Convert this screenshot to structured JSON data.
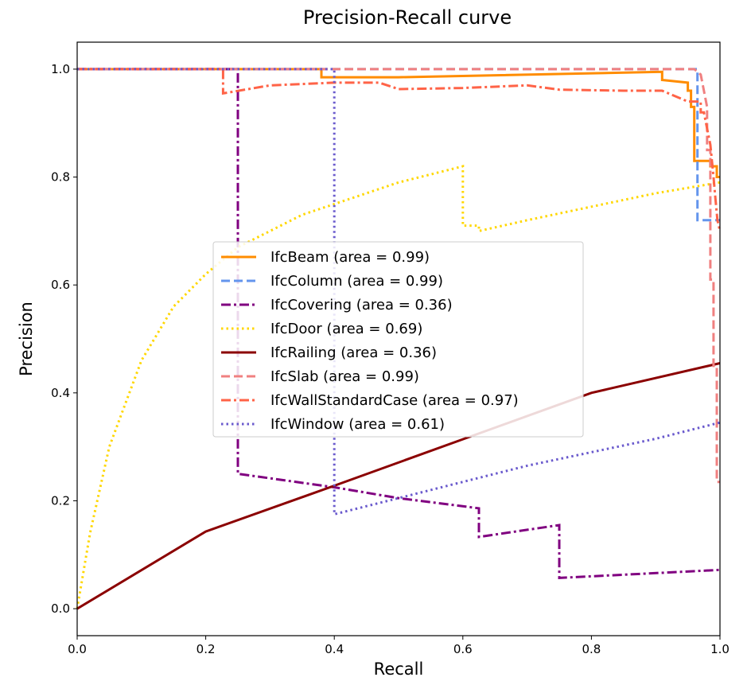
{
  "chart_data": {
    "type": "line",
    "title": "Precision-Recall curve",
    "xlabel": "Recall",
    "ylabel": "Precision",
    "xlim": [
      0.0,
      1.0
    ],
    "ylim": [
      -0.05,
      1.05
    ],
    "xticks": [
      "0.0",
      "0.2",
      "0.4",
      "0.6",
      "0.8",
      "1.0"
    ],
    "yticks": [
      "0.0",
      "0.2",
      "0.4",
      "0.6",
      "0.8",
      "1.0"
    ],
    "grid": false,
    "legend_position": "center",
    "series": [
      {
        "name": "IfcBeam (area = 0.99)",
        "color": "#ff8c00",
        "dash": "solid",
        "points": [
          [
            0,
            1.0
          ],
          [
            0.38,
            1.0
          ],
          [
            0.38,
            0.985
          ],
          [
            0.5,
            0.985
          ],
          [
            0.91,
            0.995
          ],
          [
            0.91,
            0.98
          ],
          [
            0.95,
            0.975
          ],
          [
            0.95,
            0.96
          ],
          [
            0.955,
            0.96
          ],
          [
            0.955,
            0.93
          ],
          [
            0.96,
            0.93
          ],
          [
            0.96,
            0.83
          ],
          [
            0.985,
            0.83
          ],
          [
            0.985,
            0.82
          ],
          [
            0.995,
            0.82
          ],
          [
            0.995,
            0.8
          ],
          [
            1.0,
            0.8
          ]
        ]
      },
      {
        "name": "IfcColumn (area = 0.99)",
        "color": "#6495ed",
        "dash": "dashed",
        "points": [
          [
            0,
            1.0
          ],
          [
            0.965,
            1.0
          ],
          [
            0.965,
            0.72
          ],
          [
            0.985,
            0.72
          ],
          [
            0.985,
            0.72
          ],
          [
            1.0,
            0.72
          ]
        ]
      },
      {
        "name": "IfcCovering (area = 0.36)",
        "color": "#800080",
        "dash": "dashdot",
        "points": [
          [
            0,
            1.0
          ],
          [
            0.25,
            1.0
          ],
          [
            0.25,
            0.25
          ],
          [
            0.4,
            0.225
          ],
          [
            0.5,
            0.205
          ],
          [
            0.625,
            0.186
          ],
          [
            0.625,
            0.133
          ],
          [
            0.75,
            0.155
          ],
          [
            0.75,
            0.057
          ],
          [
            1.0,
            0.072
          ]
        ]
      },
      {
        "name": "IfcDoor (area = 0.69)",
        "color": "#ffd700",
        "dash": "dotted",
        "points": [
          [
            0,
            0.0
          ],
          [
            0.02,
            0.14
          ],
          [
            0.05,
            0.3
          ],
          [
            0.1,
            0.46
          ],
          [
            0.15,
            0.56
          ],
          [
            0.2,
            0.62
          ],
          [
            0.25,
            0.67
          ],
          [
            0.3,
            0.7
          ],
          [
            0.35,
            0.73
          ],
          [
            0.4,
            0.75
          ],
          [
            0.45,
            0.77
          ],
          [
            0.5,
            0.79
          ],
          [
            0.55,
            0.805
          ],
          [
            0.6,
            0.82
          ],
          [
            0.6,
            0.71
          ],
          [
            0.625,
            0.71
          ],
          [
            0.625,
            0.7
          ],
          [
            0.7,
            0.72
          ],
          [
            0.8,
            0.745
          ],
          [
            0.9,
            0.77
          ],
          [
            1.0,
            0.79
          ]
        ]
      },
      {
        "name": "IfcRailing (area = 0.36)",
        "color": "#8b0000",
        "dash": "solid",
        "points": [
          [
            0,
            0.0
          ],
          [
            0.2,
            0.143
          ],
          [
            0.4,
            0.228
          ],
          [
            0.6,
            0.314
          ],
          [
            0.8,
            0.4
          ],
          [
            1.0,
            0.455
          ]
        ]
      },
      {
        "name": "IfcSlab (area = 0.99)",
        "color": "#f08080",
        "dash": "dashed",
        "points": [
          [
            0,
            1.0
          ],
          [
            0.96,
            1.0
          ],
          [
            0.97,
            0.99
          ],
          [
            0.975,
            0.96
          ],
          [
            0.98,
            0.93
          ],
          [
            0.98,
            0.85
          ],
          [
            0.985,
            0.85
          ],
          [
            0.985,
            0.61
          ],
          [
            0.99,
            0.61
          ],
          [
            0.99,
            0.45
          ],
          [
            0.995,
            0.45
          ],
          [
            0.995,
            0.235
          ],
          [
            1.0,
            0.235
          ]
        ]
      },
      {
        "name": "IfcWallStandardCase (area = 0.97)",
        "color": "#ff6347",
        "dash": "dashdot",
        "points": [
          [
            0,
            1.0
          ],
          [
            0.227,
            1.0
          ],
          [
            0.227,
            0.955
          ],
          [
            0.3,
            0.97
          ],
          [
            0.4,
            0.975
          ],
          [
            0.47,
            0.975
          ],
          [
            0.5,
            0.963
          ],
          [
            0.6,
            0.965
          ],
          [
            0.7,
            0.97
          ],
          [
            0.75,
            0.962
          ],
          [
            0.85,
            0.96
          ],
          [
            0.91,
            0.96
          ],
          [
            0.95,
            0.94
          ],
          [
            0.97,
            0.94
          ],
          [
            0.97,
            0.92
          ],
          [
            0.975,
            0.92
          ],
          [
            0.98,
            0.89
          ],
          [
            0.985,
            0.86
          ],
          [
            0.99,
            0.8
          ],
          [
            0.993,
            0.76
          ],
          [
            0.996,
            0.72
          ],
          [
            1.0,
            0.7
          ]
        ]
      },
      {
        "name": "IfcWindow (area = 0.61)",
        "color": "#6a5acd",
        "dash": "dotted",
        "points": [
          [
            0,
            1.0
          ],
          [
            0.4,
            1.0
          ],
          [
            0.4,
            0.175
          ],
          [
            0.5,
            0.205
          ],
          [
            0.6,
            0.235
          ],
          [
            0.7,
            0.265
          ],
          [
            0.8,
            0.29
          ],
          [
            0.9,
            0.315
          ],
          [
            1.0,
            0.345
          ]
        ]
      }
    ]
  }
}
